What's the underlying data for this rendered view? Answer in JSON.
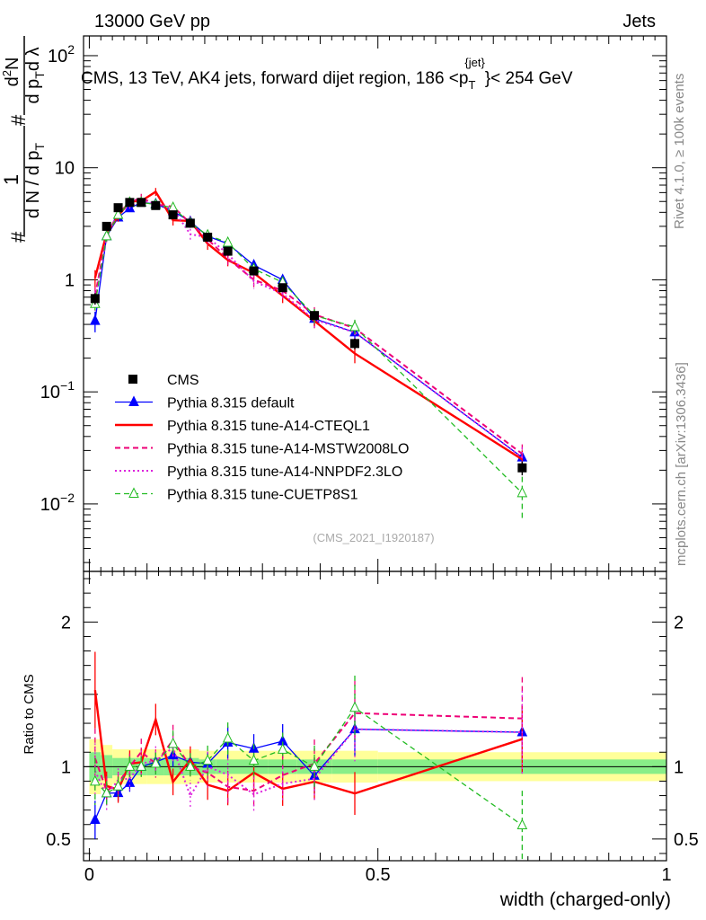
{
  "header": {
    "left": "13000 GeV pp",
    "right": "Jets",
    "title_main": "CMS, 13 TeV, AK4 jets, forward dijet region, 186 <p",
    "title_sup": "{jet}",
    "title_sub": "T",
    "title_end": "}< 254 GeV",
    "analysis": "(CMS_2021_I1920187)"
  },
  "side_labels": {
    "rivet": "Rivet 4.1.0, ≥ 100k events",
    "mcplots": "mcplots.cern.ch [arXiv:1306.3436]"
  },
  "y_axis_main": {
    "prefix": "#",
    "frac1_num": "1",
    "frac1_den": "d N / d p",
    "frac1_den_sub": "T",
    "frac2_num": "d",
    "frac2_num_sup": "2",
    "frac2_num_end": "N",
    "frac2_den": "d p",
    "frac2_den_sub": "T",
    "frac2_den_end": "d λ",
    "hash_mid": "#"
  },
  "y_axis_ratio": {
    "label": "Ratio to CMS"
  },
  "x_axis": {
    "label": "width (charged-only)"
  },
  "legend": [
    {
      "key": "cms",
      "label": "CMS"
    },
    {
      "key": "default",
      "label": "Pythia 8.315 default"
    },
    {
      "key": "cteq",
      "label": "Pythia 8.315 tune-A14-CTEQL1"
    },
    {
      "key": "mstw",
      "label": "Pythia 8.315 tune-A14-MSTW2008LO"
    },
    {
      "key": "nnpdf",
      "label": "Pythia 8.315 tune-A14-NNPDF2.3LO"
    },
    {
      "key": "cuetp",
      "label": "Pythia 8.315 tune-CUETP8S1"
    }
  ],
  "colors": {
    "cms": "#000000",
    "default": "#0000ff",
    "cteq": "#ff0000",
    "mstw": "#ee0077",
    "nnpdf": "#dd22dd",
    "cuetp": "#22bb22",
    "band_outer": "#ffff99",
    "band_inner": "#88ee88"
  },
  "chart_data": {
    "type": "line",
    "title": "CMS, 13 TeV, AK4 jets, forward dijet region, 186 <p_T^{jet}< 254 GeV",
    "xlabel": "width (charged-only)",
    "ylabel": "1/dN/dp_T d2N/dp_T dλ",
    "xlim": [
      -0.01,
      1.0
    ],
    "ylim": [
      0.0025,
      150
    ],
    "yscale": "log",
    "ratio_ylim": [
      0.35,
      2.35
    ],
    "x_ticks": [
      {
        "v": 0,
        "label": "0"
      },
      {
        "v": 0.5,
        "label": "0.5"
      },
      {
        "v": 1,
        "label": "1"
      }
    ],
    "y_ticks": [
      {
        "v": 0.01,
        "base": "10",
        "exp": "−2"
      },
      {
        "v": 0.1,
        "base": "10",
        "exp": "−1"
      },
      {
        "v": 1,
        "base": "1",
        "exp": ""
      },
      {
        "v": 10,
        "base": "10",
        "exp": ""
      },
      {
        "v": 100,
        "base": "10",
        "exp": "2"
      }
    ],
    "ratio_ticks": [
      {
        "v": 0.5,
        "label": "0.5"
      },
      {
        "v": 1,
        "label": "1"
      },
      {
        "v": 2,
        "label": "2"
      }
    ],
    "bin_edges": [
      0,
      0.02,
      0.04,
      0.06,
      0.08,
      0.1,
      0.13,
      0.16,
      0.19,
      0.22,
      0.26,
      0.31,
      0.36,
      0.42,
      0.5,
      1.0
    ],
    "x": [
      0.01,
      0.03,
      0.05,
      0.07,
      0.09,
      0.115,
      0.145,
      0.175,
      0.205,
      0.24,
      0.285,
      0.335,
      0.39,
      0.46,
      0.75
    ],
    "data": {
      "values": [
        0.68,
        3.0,
        4.4,
        4.9,
        4.9,
        4.6,
        3.8,
        3.2,
        2.4,
        1.8,
        1.2,
        0.85,
        0.48,
        0.27,
        0.021
      ],
      "errors": [
        0.08,
        0.2,
        0.3,
        0.3,
        0.3,
        0.3,
        0.25,
        0.2,
        0.15,
        0.12,
        0.09,
        0.07,
        0.04,
        0.03,
        0.003
      ]
    },
    "band_outer": [
      0.19,
      0.15,
      0.12,
      0.12,
      0.12,
      0.12,
      0.12,
      0.12,
      0.11,
      0.11,
      0.11,
      0.11,
      0.11,
      0.11,
      0.1
    ],
    "band_inner": [
      0.1,
      0.08,
      0.06,
      0.06,
      0.06,
      0.06,
      0.06,
      0.06,
      0.05,
      0.05,
      0.05,
      0.05,
      0.05,
      0.05,
      0.05
    ],
    "series": [
      {
        "key": "default",
        "name": "Pythia 8.315 default",
        "style": "solid",
        "marker": "tri-filled",
        "values": [
          0.43,
          2.45,
          3.6,
          4.35,
          4.9,
          4.75,
          4.1,
          3.3,
          2.45,
          2.1,
          1.35,
          1.0,
          0.45,
          0.34,
          0.026
        ],
        "errors": [
          0.09,
          0.2,
          0.25,
          0.3,
          0.3,
          0.3,
          0.3,
          0.25,
          0.2,
          0.2,
          0.12,
          0.1,
          0.06,
          0.05,
          0.004
        ]
      },
      {
        "key": "cteq",
        "name": "Pythia 8.315 tune-A14-CTEQL1",
        "style": "solid",
        "marker": "none",
        "values": [
          1.04,
          2.6,
          3.7,
          5.0,
          5.05,
          6.1,
          3.4,
          3.35,
          2.1,
          1.5,
          1.15,
          0.72,
          0.43,
          0.22,
          0.025
        ],
        "errors": [
          0.18,
          0.3,
          0.4,
          0.45,
          0.45,
          0.5,
          0.35,
          0.3,
          0.25,
          0.18,
          0.14,
          0.1,
          0.06,
          0.04,
          0.005
        ]
      },
      {
        "key": "mstw",
        "name": "Pythia 8.315 tune-A14-MSTW2008LO",
        "style": "dashed",
        "marker": "none",
        "values": [
          0.72,
          2.5,
          3.9,
          4.9,
          5.4,
          4.7,
          4.5,
          3.2,
          2.3,
          1.55,
          1.0,
          0.8,
          0.49,
          0.37,
          0.028
        ],
        "errors": [
          0.14,
          0.3,
          0.35,
          0.45,
          0.45,
          0.45,
          0.4,
          0.3,
          0.25,
          0.2,
          0.14,
          0.12,
          0.08,
          0.06,
          0.006
        ]
      },
      {
        "key": "nnpdf",
        "name": "Pythia 8.315 tune-A14-NNPDF2.3LO",
        "style": "dotted",
        "marker": "none",
        "values": [
          0.66,
          2.4,
          4.0,
          4.5,
          5.0,
          4.8,
          4.3,
          2.55,
          2.4,
          1.7,
          0.97,
          0.75,
          0.44,
          0.34,
          0.026
        ],
        "errors": [
          0.13,
          0.3,
          0.35,
          0.4,
          0.45,
          0.45,
          0.4,
          0.3,
          0.25,
          0.2,
          0.14,
          0.1,
          0.07,
          0.06,
          0.006
        ]
      },
      {
        "key": "cuetp",
        "name": "Pythia 8.315 tune-CUETP8S1",
        "style": "dashed",
        "marker": "tri-open",
        "values": [
          0.61,
          2.45,
          3.8,
          4.9,
          4.9,
          4.7,
          4.4,
          3.2,
          2.5,
          2.15,
          1.25,
          0.95,
          0.48,
          0.38,
          0.0125
        ],
        "errors": [
          0.11,
          0.25,
          0.3,
          0.35,
          0.35,
          0.35,
          0.35,
          0.3,
          0.25,
          0.2,
          0.14,
          0.1,
          0.07,
          0.06,
          0.005
        ]
      }
    ]
  }
}
